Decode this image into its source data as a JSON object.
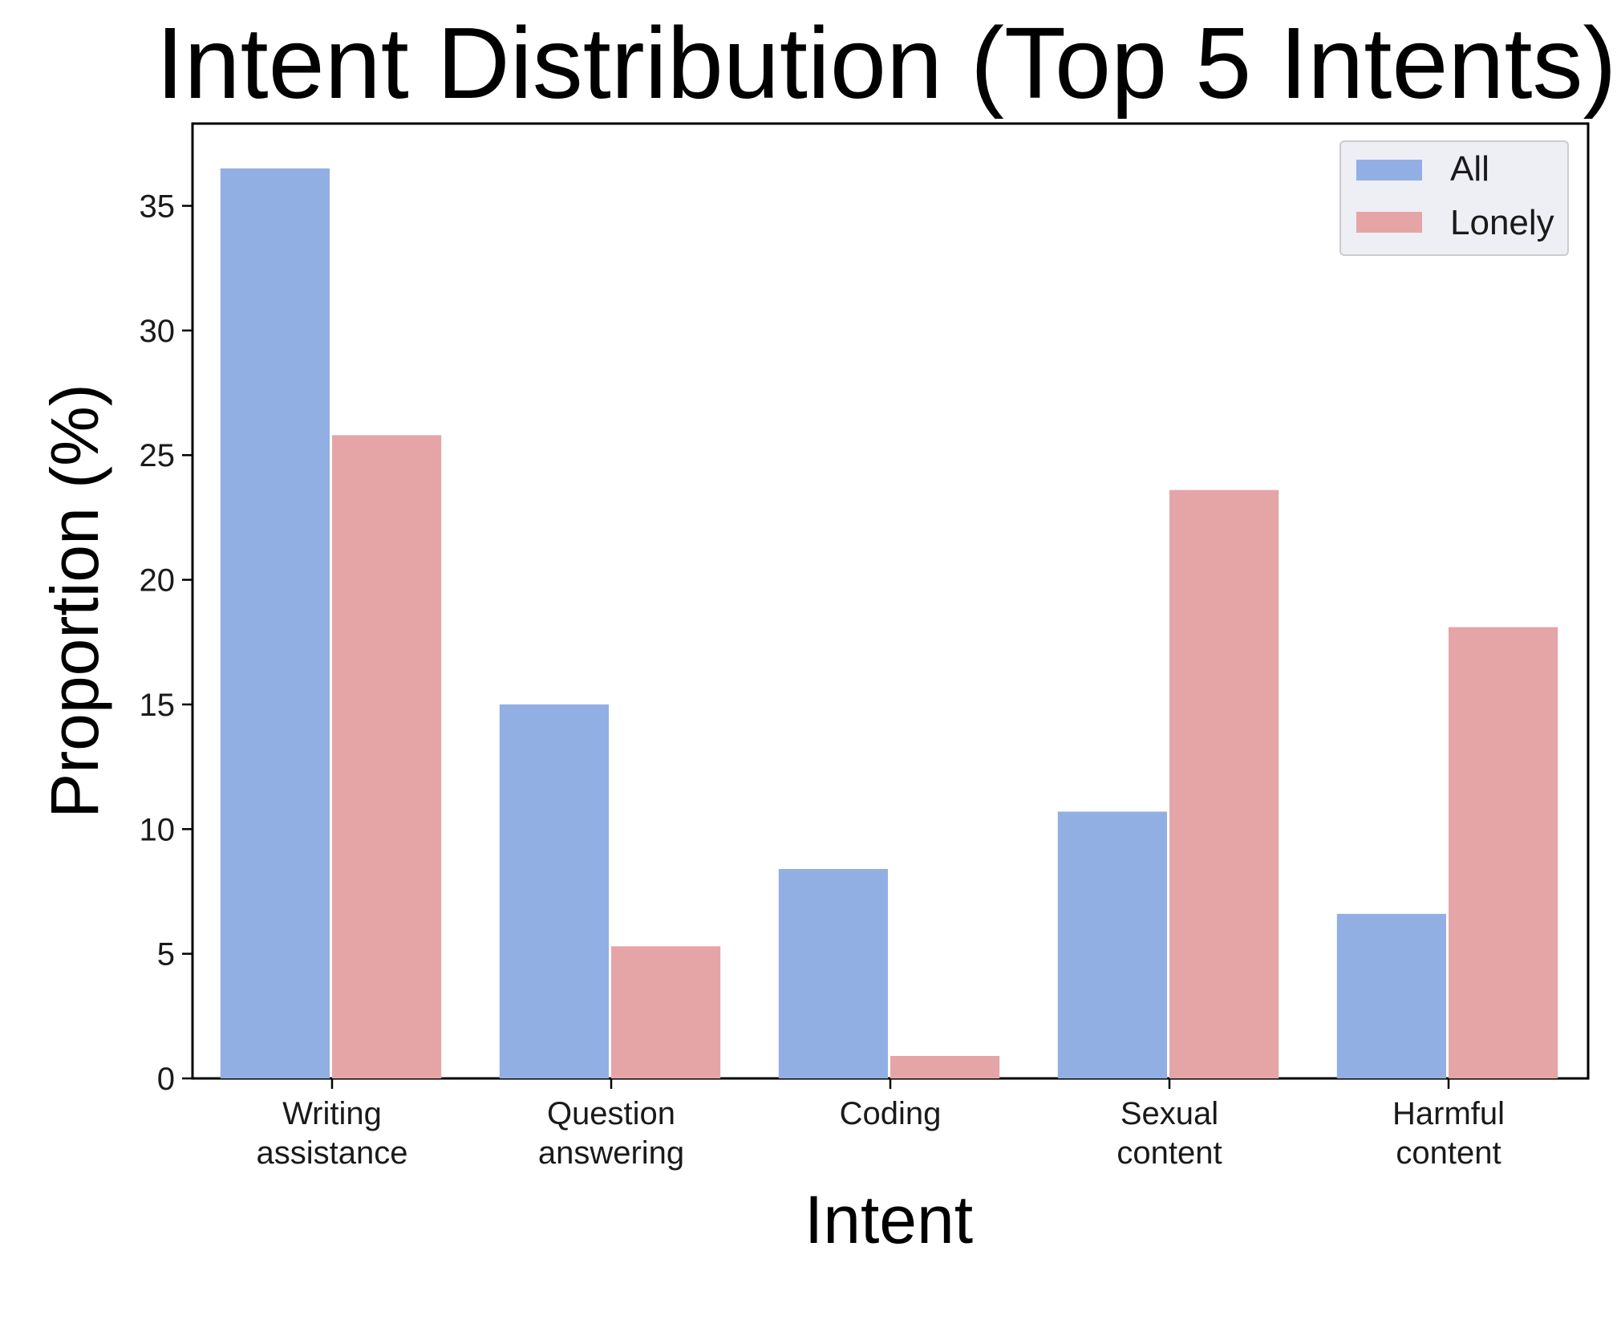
{
  "chart_data": {
    "type": "bar",
    "title": "Intent Distribution (Top 5 Intents)",
    "xlabel": "Intent",
    "ylabel": "Proportion (%)",
    "categories": [
      [
        "Writing",
        "assistance"
      ],
      [
        "Question",
        "answering"
      ],
      [
        "Coding"
      ],
      [
        "Sexual",
        "content"
      ],
      [
        "Harmful",
        "content"
      ]
    ],
    "series": [
      {
        "name": "All",
        "color": "#92afe3",
        "values": [
          36.5,
          15.0,
          8.4,
          10.7,
          6.6
        ]
      },
      {
        "name": "Lonely",
        "color": "#e5a5a6",
        "values": [
          25.8,
          5.3,
          0.9,
          23.6,
          18.1
        ]
      }
    ],
    "ylim": [
      0,
      38.3
    ],
    "yticks": [
      0,
      5,
      10,
      15,
      20,
      25,
      30,
      35
    ],
    "grid": false,
    "legend_position": "top-right"
  }
}
